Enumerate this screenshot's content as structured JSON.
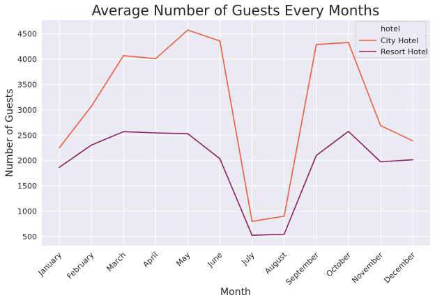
{
  "chart_data": {
    "type": "line",
    "title": "Average Number of Guests Every Months",
    "xlabel": "Month",
    "ylabel": "Number of Guests",
    "categories": [
      "January",
      "February",
      "March",
      "April",
      "May",
      "June",
      "July",
      "August",
      "September",
      "October",
      "November",
      "December"
    ],
    "series": [
      {
        "name": "City Hotel",
        "color": "#f15a40",
        "values": [
          2250,
          3070,
          4070,
          4010,
          4575,
          4360,
          800,
          900,
          4290,
          4330,
          2690,
          2390
        ]
      },
      {
        "name": "Resort Hotel",
        "color": "#8a1e5c",
        "values": [
          1865,
          2305,
          2570,
          2545,
          2530,
          2035,
          525,
          545,
          2100,
          2575,
          1975,
          2015
        ]
      }
    ],
    "yticks": [
      500,
      1000,
      1500,
      2000,
      2500,
      3000,
      3500,
      4000,
      4500
    ],
    "ylim": [
      320,
      4770
    ],
    "grid": true,
    "legend": {
      "title": "hotel",
      "position": "top-right"
    },
    "style": {
      "plot_background": "#eaeaf2",
      "grid_color": "#ffffff"
    }
  }
}
